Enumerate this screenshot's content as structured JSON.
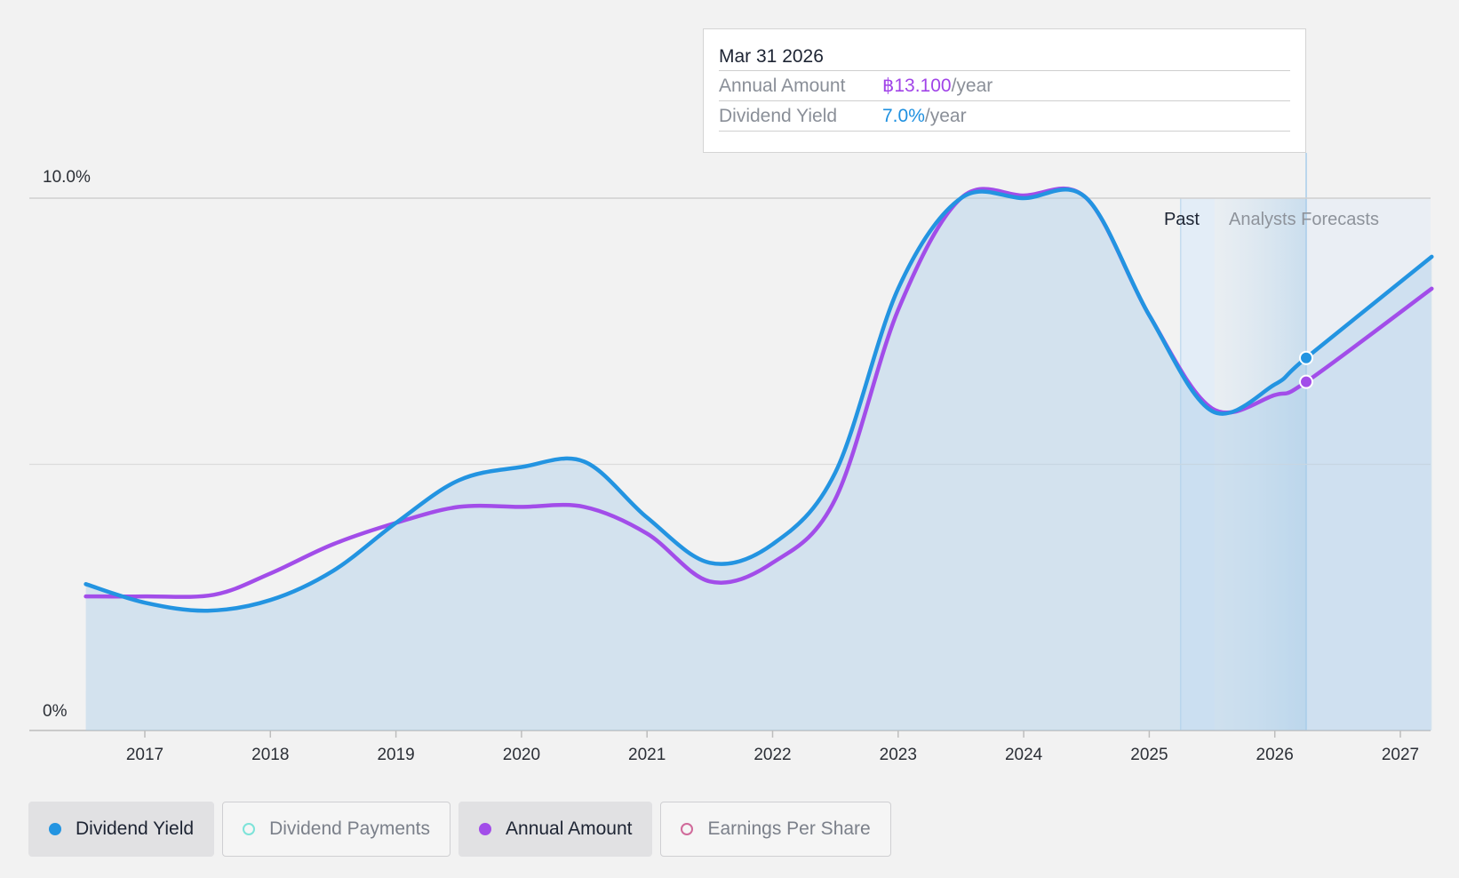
{
  "chart_data": {
    "type": "line",
    "x_ticks": [
      "2017",
      "2018",
      "2019",
      "2020",
      "2021",
      "2022",
      "2023",
      "2024",
      "2025",
      "2026",
      "2027"
    ],
    "y_ticks": [
      {
        "label": "10.0%",
        "value": 10
      },
      {
        "label": "0%",
        "value": 0
      }
    ],
    "ylim": [
      0,
      10
    ],
    "xlim": [
      2016.47,
      2027.25
    ],
    "past_label": "Past",
    "forecast_label": "Analysts Forecasts",
    "past_start": 2025.25,
    "past_end": 2025.52,
    "forecast_end": 2026.25,
    "series": [
      {
        "name": "Dividend Yield",
        "color": "#2394e1",
        "points": [
          [
            2016.53,
            2.75
          ],
          [
            2017.0,
            2.4
          ],
          [
            2017.5,
            2.25
          ],
          [
            2018.0,
            2.45
          ],
          [
            2018.5,
            3.0
          ],
          [
            2019.0,
            3.9
          ],
          [
            2019.5,
            4.7
          ],
          [
            2020.0,
            4.95
          ],
          [
            2020.5,
            5.05
          ],
          [
            2021.0,
            4.0
          ],
          [
            2021.5,
            3.15
          ],
          [
            2022.0,
            3.5
          ],
          [
            2022.5,
            4.85
          ],
          [
            2023.0,
            8.3
          ],
          [
            2023.5,
            10.0
          ],
          [
            2024.0,
            10.0
          ],
          [
            2024.5,
            10.0
          ],
          [
            2025.0,
            7.8
          ],
          [
            2025.5,
            6.0
          ],
          [
            2026.0,
            6.5
          ],
          [
            2026.25,
            7.0
          ],
          [
            2027.25,
            8.9
          ]
        ]
      },
      {
        "name": "Annual Amount",
        "color": "#a24de9",
        "points": [
          [
            2016.53,
            2.52
          ],
          [
            2017.0,
            2.52
          ],
          [
            2017.55,
            2.55
          ],
          [
            2018.0,
            2.95
          ],
          [
            2018.5,
            3.5
          ],
          [
            2019.0,
            3.9
          ],
          [
            2019.5,
            4.2
          ],
          [
            2020.0,
            4.2
          ],
          [
            2020.5,
            4.2
          ],
          [
            2021.0,
            3.7
          ],
          [
            2021.5,
            2.8
          ],
          [
            2022.0,
            3.15
          ],
          [
            2022.5,
            4.35
          ],
          [
            2023.0,
            7.9
          ],
          [
            2023.5,
            10.0
          ],
          [
            2024.0,
            10.05
          ],
          [
            2024.5,
            10.0
          ],
          [
            2025.0,
            7.8
          ],
          [
            2025.5,
            6.05
          ],
          [
            2026.0,
            6.3
          ],
          [
            2026.25,
            6.55
          ],
          [
            2027.25,
            8.3
          ]
        ]
      }
    ],
    "hover_x": 2026.25
  },
  "tooltip": {
    "date": "Mar 31 2026",
    "annual_amount_label": "Annual Amount",
    "annual_amount_value": "฿13.100",
    "annual_amount_unit": "/year",
    "dividend_yield_label": "Dividend Yield",
    "dividend_yield_value": "7.0%",
    "dividend_yield_unit": "/year"
  },
  "legend": [
    {
      "label": "Dividend Yield",
      "color": "#2394e1",
      "active": true,
      "filled": true
    },
    {
      "label": "Dividend Payments",
      "color": "#7de3d9",
      "active": false,
      "filled": false
    },
    {
      "label": "Annual Amount",
      "color": "#a24de9",
      "active": true,
      "filled": true
    },
    {
      "label": "Earnings Per Share",
      "color": "#d06a9a",
      "active": false,
      "filled": false
    }
  ]
}
